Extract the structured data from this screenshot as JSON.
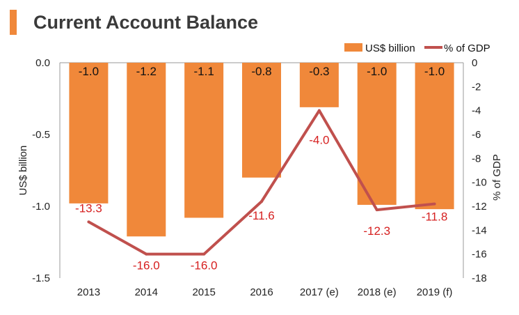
{
  "header": {
    "title": "Current Account Balance"
  },
  "chart_data": {
    "type": "bar+line",
    "title": "Current Account Balance",
    "categories": [
      "2013",
      "2014",
      "2015",
      "2016",
      "2017 (e)",
      "2018 (e)",
      "2019 (f)"
    ],
    "bar_series": {
      "name": "US$ billion",
      "values": [
        -0.98,
        -1.21,
        -1.08,
        -0.8,
        -0.31,
        -0.99,
        -1.02
      ],
      "labels": [
        "-1.0",
        "-1.2",
        "-1.1",
        "-0.8",
        "-0.3",
        "-1.0",
        "-1.0"
      ],
      "color": "#f0883a"
    },
    "line_series": {
      "name": "% of GDP",
      "values": [
        -13.3,
        -16.0,
        -16.0,
        -11.6,
        -4.0,
        -12.3,
        -11.8
      ],
      "labels": [
        "-13.3",
        "-16.0",
        "-16.0",
        "-11.6",
        "-4.0",
        "-12.3",
        "-11.8"
      ],
      "color": "#c0504d",
      "label_color": "#d62020"
    },
    "y_left": {
      "label": "US$ billion",
      "ylim": [
        -1.5,
        0
      ],
      "ticks": [
        "0.0",
        "-0.5",
        "-1.0",
        "-1.5"
      ]
    },
    "y_right": {
      "label": "% of GDP",
      "ylim": [
        -18,
        0
      ],
      "ticks": [
        "0",
        "-2",
        "-4",
        "-6",
        "-8",
        "-10",
        "-12",
        "-14",
        "-16",
        "-18"
      ]
    },
    "grid": false,
    "legend": "top-right"
  }
}
